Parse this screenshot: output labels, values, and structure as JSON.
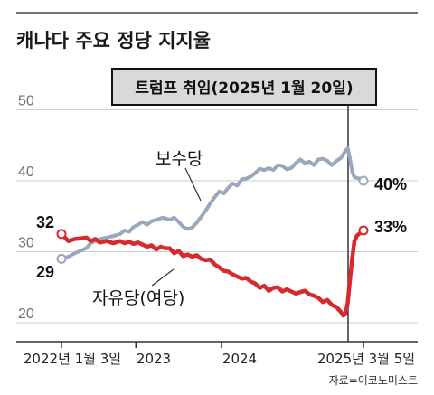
{
  "chart_data": {
    "type": "line",
    "title": "캐나다 주요 정당 지지율",
    "source": "자료=이코노미스트",
    "y_ticks": [
      "50",
      "40",
      "30",
      "20"
    ],
    "ylim": [
      20,
      52
    ],
    "x_ticks": [
      "2022년 1월 3일",
      "2023",
      "2024",
      "2025년 3월 5일"
    ],
    "annotation": "트럼프 취임(2025년 1월 20일)",
    "colors": {
      "conservative": "#9aa8bd",
      "liberal": "#d62a2f",
      "axis": "#333333",
      "grid": "#cccccc"
    },
    "series": [
      {
        "name": "보수당",
        "start_label": "29",
        "end_label": "40%",
        "points": [
          [
            0,
            29
          ],
          [
            3,
            29.3
          ],
          [
            6,
            29.8
          ],
          [
            9,
            30.2
          ],
          [
            11,
            30.5
          ],
          [
            13,
            31.2
          ],
          [
            15,
            31.5
          ],
          [
            17,
            31.8
          ],
          [
            20,
            32
          ],
          [
            23,
            32.2
          ],
          [
            26,
            32.5
          ],
          [
            28,
            33
          ],
          [
            30,
            32.8
          ],
          [
            32,
            33.5
          ],
          [
            34,
            33.8
          ],
          [
            36,
            34.2
          ],
          [
            38,
            33.8
          ],
          [
            40,
            34.3
          ],
          [
            42,
            34.5
          ],
          [
            45,
            34.8
          ],
          [
            48,
            34.5
          ],
          [
            50,
            34.8
          ],
          [
            52,
            34.2
          ],
          [
            54,
            33.5
          ],
          [
            56,
            33.2
          ],
          [
            58,
            33.4
          ],
          [
            60,
            34.1
          ],
          [
            62,
            34.9
          ],
          [
            64,
            35.8
          ],
          [
            66,
            36.8
          ],
          [
            68,
            37.7
          ],
          [
            70,
            38.5
          ],
          [
            72,
            38.2
          ],
          [
            74,
            39
          ],
          [
            76,
            39.6
          ],
          [
            78,
            39.3
          ],
          [
            80,
            40.2
          ],
          [
            82,
            40.3
          ],
          [
            84,
            40.6
          ],
          [
            86,
            41.1
          ],
          [
            88,
            41.7
          ],
          [
            90,
            41.5
          ],
          [
            92,
            41.8
          ],
          [
            94,
            41.5
          ],
          [
            96,
            42.2
          ],
          [
            98,
            42.1
          ],
          [
            100,
            41.6
          ],
          [
            102,
            41.8
          ],
          [
            104,
            42.5
          ],
          [
            106,
            43
          ],
          [
            108,
            42.5
          ],
          [
            110,
            42.7
          ],
          [
            112,
            42.2
          ],
          [
            114,
            43
          ],
          [
            116,
            43.1
          ],
          [
            118,
            42.8
          ],
          [
            120,
            42.2
          ],
          [
            122,
            42.8
          ],
          [
            124,
            43.2
          ],
          [
            126,
            44.2
          ],
          [
            127,
            44.6
          ],
          [
            128,
            43.2
          ],
          [
            129,
            41.3
          ],
          [
            130,
            40.5
          ],
          [
            132,
            40.3
          ],
          [
            134,
            40
          ]
        ]
      },
      {
        "name": "자유당(여당)",
        "start_label": "32",
        "end_label": "33%",
        "points": [
          [
            0,
            32.5
          ],
          [
            3,
            31.5
          ],
          [
            6,
            31.8
          ],
          [
            9,
            31.9
          ],
          [
            11,
            32
          ],
          [
            13,
            31.5
          ],
          [
            15,
            31.8
          ],
          [
            17,
            31.3
          ],
          [
            20,
            31.5
          ],
          [
            23,
            31.2
          ],
          [
            26,
            31.5
          ],
          [
            28,
            31.2
          ],
          [
            30,
            31.4
          ],
          [
            32,
            31.1
          ],
          [
            34,
            31.3
          ],
          [
            36,
            31
          ],
          [
            38,
            30.7
          ],
          [
            40,
            30.9
          ],
          [
            42,
            30.3
          ],
          [
            44,
            30.7
          ],
          [
            46,
            30.5
          ],
          [
            48,
            30.5
          ],
          [
            50,
            29.8
          ],
          [
            52,
            30.1
          ],
          [
            54,
            29.4
          ],
          [
            56,
            29.6
          ],
          [
            58,
            29.3
          ],
          [
            60,
            29.5
          ],
          [
            62,
            29
          ],
          [
            64,
            28.8
          ],
          [
            66,
            28.9
          ],
          [
            68,
            28.2
          ],
          [
            70,
            27.8
          ],
          [
            72,
            27.3
          ],
          [
            74,
            27.2
          ],
          [
            76,
            26.8
          ],
          [
            78,
            26.5
          ],
          [
            80,
            26.2
          ],
          [
            82,
            26.3
          ],
          [
            84,
            25.8
          ],
          [
            86,
            25.5
          ],
          [
            88,
            24.9
          ],
          [
            90,
            25.2
          ],
          [
            92,
            24.5
          ],
          [
            94,
            24.9
          ],
          [
            96,
            25
          ],
          [
            98,
            24.4
          ],
          [
            100,
            24.7
          ],
          [
            102,
            24.4
          ],
          [
            104,
            24.1
          ],
          [
            106,
            24.3
          ],
          [
            108,
            24.5
          ],
          [
            110,
            24
          ],
          [
            112,
            23.8
          ],
          [
            114,
            23.5
          ],
          [
            116,
            22.9
          ],
          [
            118,
            23.2
          ],
          [
            120,
            22.5
          ],
          [
            122,
            22.2
          ],
          [
            124,
            21.5
          ],
          [
            125,
            21
          ],
          [
            126,
            21.2
          ],
          [
            127,
            22.8
          ],
          [
            128,
            26
          ],
          [
            129,
            29
          ],
          [
            130,
            31.5
          ],
          [
            131,
            32.2
          ],
          [
            132,
            32.5
          ],
          [
            134,
            33
          ]
        ]
      }
    ]
  }
}
